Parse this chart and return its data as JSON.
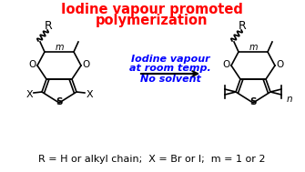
{
  "title_line1": "Iodine vapour promoted",
  "title_line2": "polymerization",
  "title_color": "#ff0000",
  "title_fontsize": 10.5,
  "arrow_text_line1": "Iodine vapour",
  "arrow_text_line2": "at room temp.",
  "arrow_text_line3": "No solvent",
  "arrow_text_color": "#0000ff",
  "arrow_text_fontsize": 8.0,
  "caption": "R = H or alkyl chain;  X = Br or I;  m = 1 or 2",
  "caption_fontsize": 8.0,
  "caption_color": "#000000",
  "background_color": "#ffffff",
  "structure_color": "#000000",
  "label_color": "#000000",
  "fig_width": 3.35,
  "fig_height": 1.89,
  "dpi": 100
}
